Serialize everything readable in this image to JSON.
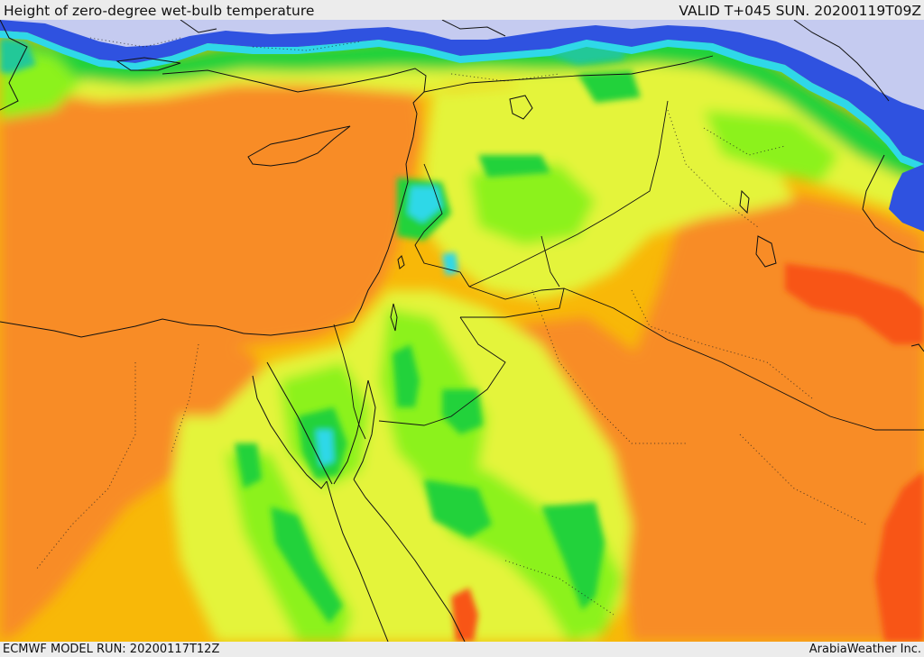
{
  "header": {
    "title": "Height of zero-degree wet-bulb temperature",
    "valid": "VALID T+045 SUN. 20200119T09Z"
  },
  "footer": {
    "model_run": "ECMWF MODEL RUN: 20200117T12Z",
    "credit": "ArabiaWeather Inc."
  },
  "colors": {
    "lightest_blue": "#c5cbf0",
    "blue": "#2f52e0",
    "cyan": "#2fd8e8",
    "teal": "#22c898",
    "green": "#22d23a",
    "light_green": "#8cf21c",
    "yellow_green": "#e4f43a",
    "amber": "#f8b808",
    "orange": "#f88c28",
    "red_orange": "#f85418",
    "boundary": "#111111"
  }
}
